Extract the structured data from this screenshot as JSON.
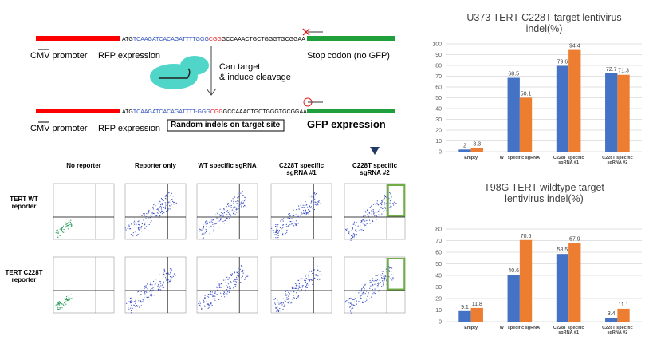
{
  "diagram": {
    "row1": {
      "atg": "ATG",
      "seq_target": "TCAAGATCACAGATTTTGGG",
      "seq_pam": "CGG",
      "seq_rest": "GCCAAACTGCTGGGTGCGGAA",
      "promoter": "CMV promoter",
      "rfp": "RFP expression",
      "stop": "Stop codon (no GFP)"
    },
    "cleavage": [
      "Can target",
      "& induce cleavage"
    ],
    "row2": {
      "atg": "ATG",
      "seq_target": "TCAAGATCACAGATTTT-GGG",
      "seq_pam": "CGG",
      "seq_rest": "GCCAAACTGCTGGGTGCGGAA",
      "promoter": "CMV promoter",
      "rfp": "RFP expression",
      "indels": "Random indels on target site",
      "gfp": "GFP expression"
    }
  },
  "flow": {
    "columns": [
      "No reporter",
      "Reporter only",
      "WT specific sgRNA",
      "C228T specific sgRNA #1",
      "C228T specific sgRNA #2"
    ],
    "rows": [
      "TERT WT reporter",
      "TERT C228T reporter"
    ]
  },
  "chart_data": [
    {
      "type": "bar",
      "title": "U373 TERT C228T target lentivirus indel(%)",
      "categories": [
        "Empty",
        "WT specific sgRNA",
        "C228T specific sgRNA #1",
        "C228T specific sgRNA #2"
      ],
      "series": [
        {
          "color": "#4472c4",
          "values": [
            2,
            68.5,
            79.6,
            72.7
          ]
        },
        {
          "color": "#ed7d31",
          "values": [
            3.3,
            50.1,
            94.4,
            71.3
          ]
        }
      ],
      "ylim": [
        0,
        100
      ],
      "yticks": [
        0,
        10,
        20,
        30,
        40,
        50,
        60,
        70,
        80,
        90,
        100
      ],
      "grid": true
    },
    {
      "type": "bar",
      "title": "T98G TERT wildtype target lentivirus indel(%)",
      "categories": [
        "Empty",
        "WT specific sgRNA",
        "C228T specific sgRNA #1",
        "C228T specific sgRNA #2"
      ],
      "series": [
        {
          "color": "#4472c4",
          "values": [
            9.1,
            40.6,
            58.5,
            3.4
          ]
        },
        {
          "color": "#ed7d31",
          "values": [
            11.8,
            70.5,
            67.9,
            11.1
          ]
        }
      ],
      "ylim": [
        0,
        80
      ],
      "yticks": [
        0,
        10,
        20,
        30,
        40,
        50,
        60,
        70,
        80
      ],
      "grid": true
    }
  ]
}
